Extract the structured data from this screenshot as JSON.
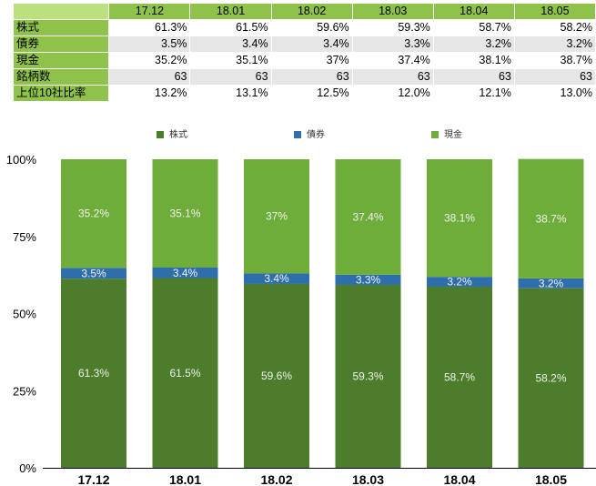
{
  "table": {
    "columns": [
      "17.12",
      "18.01",
      "18.02",
      "18.03",
      "18.04",
      "18.05"
    ],
    "rows": [
      {
        "label": "株式",
        "values": [
          "61.3%",
          "61.5%",
          "59.6%",
          "59.3%",
          "58.7%",
          "58.2%"
        ]
      },
      {
        "label": "債券",
        "values": [
          "3.5%",
          "3.4%",
          "3.4%",
          "3.3%",
          "3.2%",
          "3.2%"
        ]
      },
      {
        "label": "現金",
        "values": [
          "35.2%",
          "35.1%",
          "37%",
          "37.4%",
          "38.1%",
          "38.7%"
        ]
      },
      {
        "label": "銘柄数",
        "values": [
          "63",
          "63",
          "63",
          "63",
          "63",
          "63"
        ]
      },
      {
        "label": "上位10社比率",
        "values": [
          "13.2%",
          "13.1%",
          "12.5%",
          "12.0%",
          "12.1%",
          "13.0%"
        ]
      }
    ]
  },
  "chart_data": {
    "type": "bar",
    "stacked": true,
    "categories": [
      "17.12",
      "18.01",
      "18.02",
      "18.03",
      "18.04",
      "18.05"
    ],
    "series": [
      {
        "name": "株式",
        "color": "#4b7d2b",
        "values": [
          61.3,
          61.5,
          59.6,
          59.3,
          58.7,
          58.2
        ],
        "labels": [
          "61.3%",
          "61.5%",
          "59.6%",
          "59.3%",
          "58.7%",
          "58.2%"
        ]
      },
      {
        "name": "債券",
        "color": "#2e6fab",
        "values": [
          3.5,
          3.4,
          3.4,
          3.3,
          3.2,
          3.2
        ],
        "labels": [
          "3.5%",
          "3.4%",
          "3.4%",
          "3.3%",
          "3.2%",
          "3.2%"
        ]
      },
      {
        "name": "現金",
        "color": "#6fad3a",
        "values": [
          35.2,
          35.1,
          37,
          37.4,
          38.1,
          38.7
        ],
        "labels": [
          "35.2%",
          "35.1%",
          "37%",
          "37.4%",
          "38.1%",
          "38.7%"
        ]
      }
    ],
    "yticks": [
      {
        "value": 0,
        "label": "0%"
      },
      {
        "value": 25,
        "label": "25%"
      },
      {
        "value": 50,
        "label": "50%"
      },
      {
        "value": 75,
        "label": "75%"
      },
      {
        "value": 100,
        "label": "100%"
      }
    ],
    "ylim": [
      0,
      100
    ],
    "legend_position": "top",
    "grid": false
  }
}
